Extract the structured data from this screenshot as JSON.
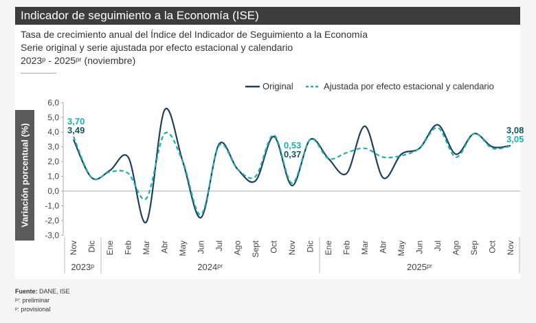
{
  "header": {
    "title": "Indicador de seguimiento a la Economía (ISE)",
    "subtitle1": "Tasa de crecimiento anual del Índice del Indicador de Seguimiento a la Economía",
    "subtitle2": "Serie original y serie ajustada por efecto estacional y calendario",
    "subtitle3": "2023ᵖ - 2025ᵖʳ (noviembre)"
  },
  "footer": {
    "source_label": "Fuente:",
    "source": " DANE, ISE",
    "note_pr": "ᵖʳ: preliminar",
    "note_p": "ᵖ: provisional"
  },
  "chart_data": {
    "type": "line",
    "title": "Indicador de seguimiento a la Economía (ISE)",
    "ylabel": "Variación porcentual (%)",
    "ylim": [
      -3,
      6
    ],
    "yticks": [
      "6,0",
      "5,0",
      "4,0",
      "3,0",
      "2,0",
      "1,0",
      "0,0",
      "-1,0",
      "-2,0",
      "-3,0"
    ],
    "categories": [
      "Nov",
      "Dic",
      "Ene",
      "Feb",
      "Mar",
      "Abr",
      "May",
      "Jun",
      "Jul",
      "Ago",
      "Sept",
      "Oct",
      "Nov",
      "Dic",
      "Ene",
      "Feb",
      "Mar",
      "Abr",
      "May",
      "Jun",
      "Jul",
      "Ago",
      "Sep",
      "Oct",
      "Nov"
    ],
    "years": [
      {
        "label": "2023ᵖ",
        "start": 0,
        "end": 1
      },
      {
        "label": "2024ᵖʳ",
        "start": 2,
        "end": 13
      },
      {
        "label": "2025ᵖʳ",
        "start": 14,
        "end": 24
      }
    ],
    "legend_position": "top-right",
    "series": [
      {
        "name": "Original",
        "color": "#1d3f5e",
        "dashed": false,
        "values": [
          3.49,
          0.9,
          1.4,
          2.3,
          -2.1,
          5.5,
          2.0,
          -1.8,
          3.2,
          1.5,
          0.7,
          3.7,
          0.37,
          3.5,
          2.2,
          1.2,
          4.4,
          0.9,
          2.5,
          2.9,
          4.5,
          2.5,
          3.9,
          3.0,
          3.08
        ]
      },
      {
        "name": "Ajustada por efecto estacional y calendario",
        "color": "#17b0b3",
        "dashed": true,
        "values": [
          3.7,
          0.9,
          1.3,
          1.2,
          -0.5,
          3.9,
          2.0,
          -1.6,
          3.1,
          1.5,
          1.0,
          3.8,
          0.53,
          3.5,
          2.2,
          2.6,
          2.9,
          2.3,
          2.4,
          2.9,
          4.3,
          2.3,
          3.9,
          2.9,
          3.05
        ]
      }
    ],
    "annotations": [
      {
        "text": "3,70",
        "series": 1,
        "index": 0
      },
      {
        "text": "3,49",
        "series": 0,
        "index": 0
      },
      {
        "text": "0,53",
        "series": 1,
        "index": 12
      },
      {
        "text": "0,37",
        "series": 0,
        "index": 12
      },
      {
        "text": "3,08",
        "series": 0,
        "index": 24
      },
      {
        "text": "3,05",
        "series": 1,
        "index": 24
      }
    ]
  }
}
